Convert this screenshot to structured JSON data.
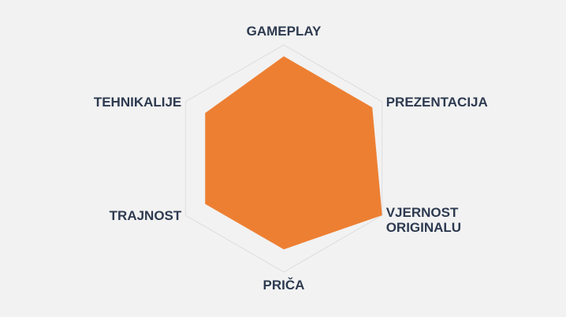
{
  "chart_data": {
    "type": "radar",
    "axes": [
      "GAMEPLAY",
      "PREZENTACIJA",
      "VJERNOST ORIGINALU",
      "PRIČA",
      "TRAJNOST",
      "TEHNIKALIJE"
    ],
    "axis_label_lines": [
      [
        "GAMEPLAY"
      ],
      [
        "PREZENTACIJA"
      ],
      [
        "VJERNOST",
        "ORIGINALU"
      ],
      [
        "PRIČA"
      ],
      [
        "TRAJNOST"
      ],
      [
        "TEHNIKALIJE"
      ]
    ],
    "values": [
      9,
      9,
      10,
      8,
      8,
      8
    ],
    "range": [
      0,
      10
    ],
    "grid": "outer hexagon only",
    "fill_color": "#ed7f32",
    "grid_color": "#dddddd",
    "label_color": "#2d3a50",
    "background": "#f2f2f2"
  }
}
